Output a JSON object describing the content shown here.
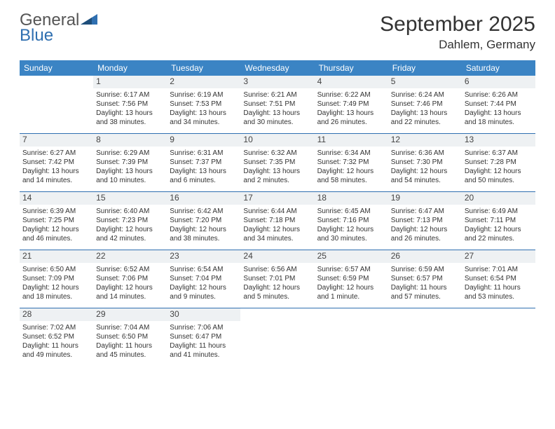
{
  "logo": {
    "line1": "General",
    "line2": "Blue"
  },
  "title": "September 2025",
  "location": "Dahlem, Germany",
  "colors": {
    "header_bg": "#3b84c4",
    "header_text": "#ffffff",
    "day_label_bg": "#eef1f3",
    "rule": "#2f6fb0",
    "logo_gray": "#555555",
    "logo_blue": "#2f6fb0"
  },
  "typography": {
    "title_fontsize": 30,
    "location_fontsize": 17,
    "dow_fontsize": 12,
    "daynum_fontsize": 12,
    "body_fontsize": 10
  },
  "daysOfWeek": [
    "Sunday",
    "Monday",
    "Tuesday",
    "Wednesday",
    "Thursday",
    "Friday",
    "Saturday"
  ],
  "weeks": [
    [
      {
        "num": "",
        "sunrise": "",
        "sunset": "",
        "daylight": ""
      },
      {
        "num": "1",
        "sunrise": "Sunrise: 6:17 AM",
        "sunset": "Sunset: 7:56 PM",
        "daylight": "Daylight: 13 hours and 38 minutes."
      },
      {
        "num": "2",
        "sunrise": "Sunrise: 6:19 AM",
        "sunset": "Sunset: 7:53 PM",
        "daylight": "Daylight: 13 hours and 34 minutes."
      },
      {
        "num": "3",
        "sunrise": "Sunrise: 6:21 AM",
        "sunset": "Sunset: 7:51 PM",
        "daylight": "Daylight: 13 hours and 30 minutes."
      },
      {
        "num": "4",
        "sunrise": "Sunrise: 6:22 AM",
        "sunset": "Sunset: 7:49 PM",
        "daylight": "Daylight: 13 hours and 26 minutes."
      },
      {
        "num": "5",
        "sunrise": "Sunrise: 6:24 AM",
        "sunset": "Sunset: 7:46 PM",
        "daylight": "Daylight: 13 hours and 22 minutes."
      },
      {
        "num": "6",
        "sunrise": "Sunrise: 6:26 AM",
        "sunset": "Sunset: 7:44 PM",
        "daylight": "Daylight: 13 hours and 18 minutes."
      }
    ],
    [
      {
        "num": "7",
        "sunrise": "Sunrise: 6:27 AM",
        "sunset": "Sunset: 7:42 PM",
        "daylight": "Daylight: 13 hours and 14 minutes."
      },
      {
        "num": "8",
        "sunrise": "Sunrise: 6:29 AM",
        "sunset": "Sunset: 7:39 PM",
        "daylight": "Daylight: 13 hours and 10 minutes."
      },
      {
        "num": "9",
        "sunrise": "Sunrise: 6:31 AM",
        "sunset": "Sunset: 7:37 PM",
        "daylight": "Daylight: 13 hours and 6 minutes."
      },
      {
        "num": "10",
        "sunrise": "Sunrise: 6:32 AM",
        "sunset": "Sunset: 7:35 PM",
        "daylight": "Daylight: 13 hours and 2 minutes."
      },
      {
        "num": "11",
        "sunrise": "Sunrise: 6:34 AM",
        "sunset": "Sunset: 7:32 PM",
        "daylight": "Daylight: 12 hours and 58 minutes."
      },
      {
        "num": "12",
        "sunrise": "Sunrise: 6:36 AM",
        "sunset": "Sunset: 7:30 PM",
        "daylight": "Daylight: 12 hours and 54 minutes."
      },
      {
        "num": "13",
        "sunrise": "Sunrise: 6:37 AM",
        "sunset": "Sunset: 7:28 PM",
        "daylight": "Daylight: 12 hours and 50 minutes."
      }
    ],
    [
      {
        "num": "14",
        "sunrise": "Sunrise: 6:39 AM",
        "sunset": "Sunset: 7:25 PM",
        "daylight": "Daylight: 12 hours and 46 minutes."
      },
      {
        "num": "15",
        "sunrise": "Sunrise: 6:40 AM",
        "sunset": "Sunset: 7:23 PM",
        "daylight": "Daylight: 12 hours and 42 minutes."
      },
      {
        "num": "16",
        "sunrise": "Sunrise: 6:42 AM",
        "sunset": "Sunset: 7:20 PM",
        "daylight": "Daylight: 12 hours and 38 minutes."
      },
      {
        "num": "17",
        "sunrise": "Sunrise: 6:44 AM",
        "sunset": "Sunset: 7:18 PM",
        "daylight": "Daylight: 12 hours and 34 minutes."
      },
      {
        "num": "18",
        "sunrise": "Sunrise: 6:45 AM",
        "sunset": "Sunset: 7:16 PM",
        "daylight": "Daylight: 12 hours and 30 minutes."
      },
      {
        "num": "19",
        "sunrise": "Sunrise: 6:47 AM",
        "sunset": "Sunset: 7:13 PM",
        "daylight": "Daylight: 12 hours and 26 minutes."
      },
      {
        "num": "20",
        "sunrise": "Sunrise: 6:49 AM",
        "sunset": "Sunset: 7:11 PM",
        "daylight": "Daylight: 12 hours and 22 minutes."
      }
    ],
    [
      {
        "num": "21",
        "sunrise": "Sunrise: 6:50 AM",
        "sunset": "Sunset: 7:09 PM",
        "daylight": "Daylight: 12 hours and 18 minutes."
      },
      {
        "num": "22",
        "sunrise": "Sunrise: 6:52 AM",
        "sunset": "Sunset: 7:06 PM",
        "daylight": "Daylight: 12 hours and 14 minutes."
      },
      {
        "num": "23",
        "sunrise": "Sunrise: 6:54 AM",
        "sunset": "Sunset: 7:04 PM",
        "daylight": "Daylight: 12 hours and 9 minutes."
      },
      {
        "num": "24",
        "sunrise": "Sunrise: 6:56 AM",
        "sunset": "Sunset: 7:01 PM",
        "daylight": "Daylight: 12 hours and 5 minutes."
      },
      {
        "num": "25",
        "sunrise": "Sunrise: 6:57 AM",
        "sunset": "Sunset: 6:59 PM",
        "daylight": "Daylight: 12 hours and 1 minute."
      },
      {
        "num": "26",
        "sunrise": "Sunrise: 6:59 AM",
        "sunset": "Sunset: 6:57 PM",
        "daylight": "Daylight: 11 hours and 57 minutes."
      },
      {
        "num": "27",
        "sunrise": "Sunrise: 7:01 AM",
        "sunset": "Sunset: 6:54 PM",
        "daylight": "Daylight: 11 hours and 53 minutes."
      }
    ],
    [
      {
        "num": "28",
        "sunrise": "Sunrise: 7:02 AM",
        "sunset": "Sunset: 6:52 PM",
        "daylight": "Daylight: 11 hours and 49 minutes."
      },
      {
        "num": "29",
        "sunrise": "Sunrise: 7:04 AM",
        "sunset": "Sunset: 6:50 PM",
        "daylight": "Daylight: 11 hours and 45 minutes."
      },
      {
        "num": "30",
        "sunrise": "Sunrise: 7:06 AM",
        "sunset": "Sunset: 6:47 PM",
        "daylight": "Daylight: 11 hours and 41 minutes."
      },
      {
        "num": "",
        "sunrise": "",
        "sunset": "",
        "daylight": ""
      },
      {
        "num": "",
        "sunrise": "",
        "sunset": "",
        "daylight": ""
      },
      {
        "num": "",
        "sunrise": "",
        "sunset": "",
        "daylight": ""
      },
      {
        "num": "",
        "sunrise": "",
        "sunset": "",
        "daylight": ""
      }
    ]
  ]
}
